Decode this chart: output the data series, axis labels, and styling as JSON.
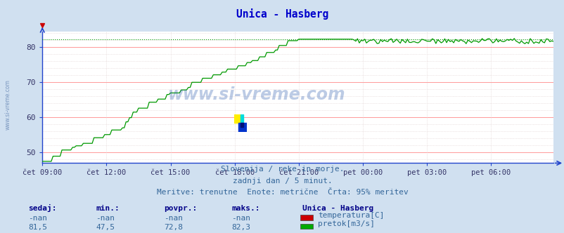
{
  "title": "Unica - Hasberg",
  "title_color": "#0000cc",
  "bg_color": "#d0e0f0",
  "plot_bg_color": "#ffffff",
  "grid_color_major_h": "#ff9999",
  "grid_color_minor": "#ddcccc",
  "grid_color_v": "#ddcccc",
  "x_axis_color": "#2244cc",
  "y_axis_color": "#2244cc",
  "tick_color": "#333366",
  "watermark_text": "www.si-vreme.com",
  "watermark_color": "#2255aa",
  "subtitle1": "Slovenija / reke in morje.",
  "subtitle2": "zadnji dan / 5 minut.",
  "subtitle3": "Meritve: trenutne  Enote: metrične  Črta: 95% meritev",
  "subtitle_color": "#336699",
  "footer_cols": [
    "sedaj:",
    "min.:",
    "povpr.:",
    "maks.:"
  ],
  "footer_col_color": "#000088",
  "footer_row1": [
    "-nan",
    "-nan",
    "-nan",
    "-nan"
  ],
  "footer_row2": [
    "81,5",
    "47,5",
    "72,8",
    "82,3"
  ],
  "footer_data_color": "#336699",
  "legend_title": "Unica - Hasberg",
  "legend_title_color": "#000088",
  "legend_items": [
    {
      "label": "temperatura[C]",
      "color": "#cc0000"
    },
    {
      "label": "pretok[m3/s]",
      "color": "#00aa00"
    }
  ],
  "legend_label_color": "#336699",
  "xlim": [
    0,
    287
  ],
  "ylim_bottom": 47.0,
  "ylim_top": 84.5,
  "yticks": [
    50,
    60,
    70,
    80
  ],
  "xtick_labels": [
    "čet 09:00",
    "čet 12:00",
    "čet 15:00",
    "čet 18:00",
    "čet 21:00",
    "pet 00:00",
    "pet 03:00",
    "pet 06:00"
  ],
  "xtick_positions": [
    0,
    36,
    72,
    108,
    144,
    180,
    216,
    252
  ],
  "max_line_value": 82.3,
  "max_line_color": "#009900",
  "flow_line_color": "#009900",
  "left_label": "www.si-vreme.com",
  "n_points": 288
}
